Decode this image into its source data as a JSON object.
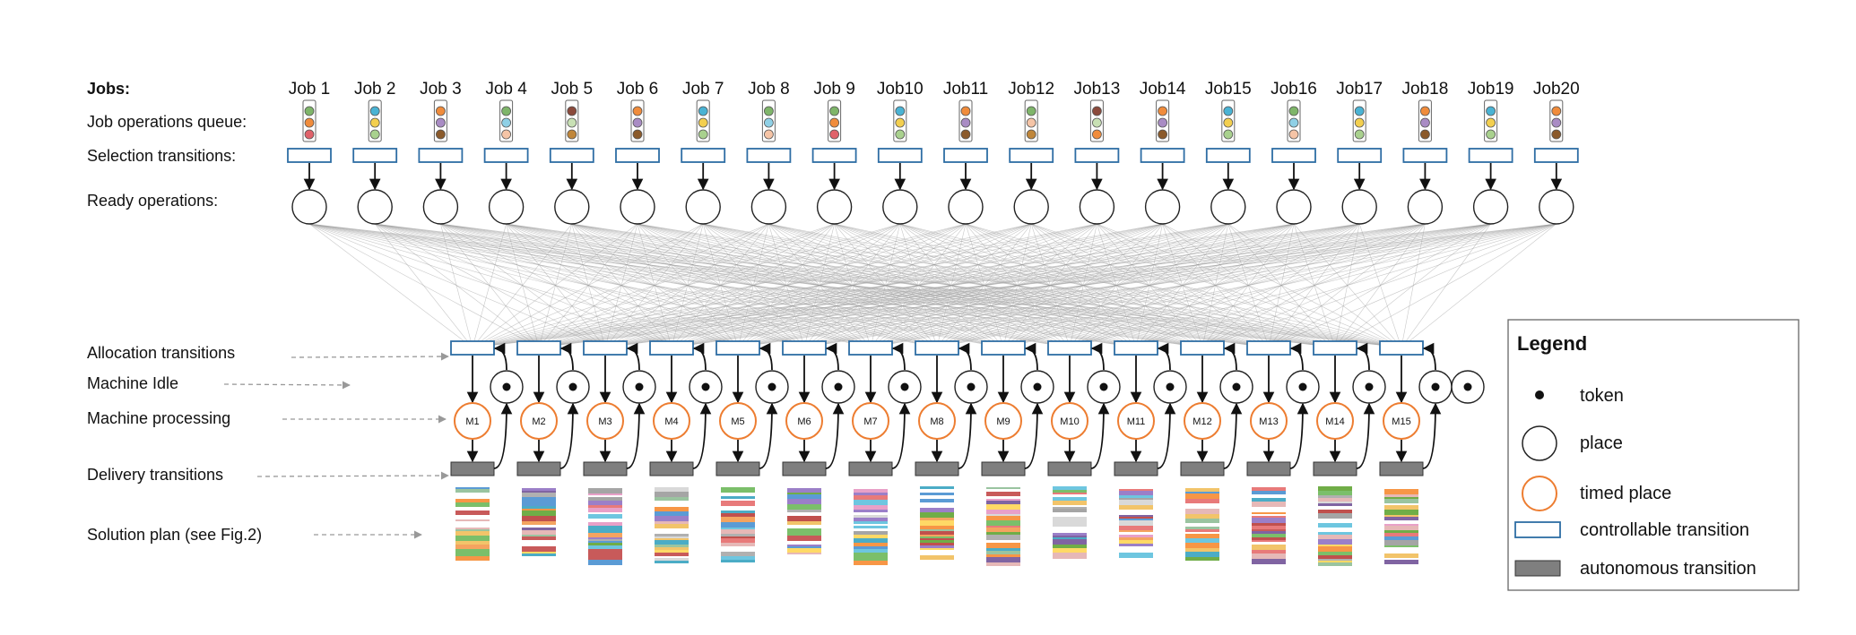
{
  "jobs_label": "Jobs:",
  "row_labels": {
    "queue": "Job operations queue:",
    "selection": "Selection transitions:",
    "ready": "Ready operations:",
    "allocation": "Allocation transitions",
    "idle": "Machine Idle",
    "processing": "Machine processing",
    "delivery": "Delivery transitions",
    "solution": "Solution plan (see Fig.2)"
  },
  "jobs": [
    "Job 1",
    "Job 2",
    "Job 3",
    "Job 4",
    "Job 5",
    "Job 6",
    "Job 7",
    "Job 8",
    "Job 9",
    "Job10",
    "Job11",
    "Job12",
    "Job13",
    "Job14",
    "Job15",
    "Job16",
    "Job17",
    "Job18",
    "Job19",
    "Job20"
  ],
  "job_token_colors": [
    [
      "#7fb56a",
      "#f08c3c",
      "#e0626a"
    ],
    [
      "#4ab3d4",
      "#f3cf4f",
      "#a9d18e"
    ],
    [
      "#f08c3c",
      "#a98cc4",
      "#8b5a2b"
    ],
    [
      "#7fb56a",
      "#8fd0e6",
      "#f5c4a6"
    ],
    [
      "#8b4a3c",
      "#c8e0b4",
      "#c0863a"
    ],
    [
      "#f08c3c",
      "#a98cc4",
      "#8b5a2b"
    ],
    [
      "#4ab3d4",
      "#f3cf4f",
      "#a9d18e"
    ],
    [
      "#7fb56a",
      "#8fd0e6",
      "#f5c4a6"
    ],
    [
      "#7fb56a",
      "#f08c3c",
      "#e0626a"
    ],
    [
      "#4ab3d4",
      "#f3cf4f",
      "#a9d18e"
    ],
    [
      "#f08c3c",
      "#a98cc4",
      "#8b5a2b"
    ],
    [
      "#7fb56a",
      "#f5c4a6",
      "#c0863a"
    ],
    [
      "#8b4a3c",
      "#c8e0b4",
      "#f08c3c"
    ],
    [
      "#f08c3c",
      "#a98cc4",
      "#8b5a2b"
    ],
    [
      "#4ab3d4",
      "#f3cf4f",
      "#a9d18e"
    ],
    [
      "#7fb56a",
      "#8fd0e6",
      "#f5c4a6"
    ],
    [
      "#4ab3d4",
      "#f3cf4f",
      "#a9d18e"
    ],
    [
      "#f08c3c",
      "#a98cc4",
      "#8b5a2b"
    ],
    [
      "#4ab3d4",
      "#f3cf4f",
      "#a9d18e"
    ],
    [
      "#f08c3c",
      "#a98cc4",
      "#8b5a2b"
    ]
  ],
  "machines": [
    "M1",
    "M2",
    "M3",
    "M4",
    "M5",
    "M6",
    "M7",
    "M8",
    "M9",
    "M10",
    "M11",
    "M12",
    "M13",
    "M14",
    "M15"
  ],
  "legend": {
    "title": "Legend",
    "items": [
      {
        "symbol": "token",
        "label": "token"
      },
      {
        "symbol": "place",
        "label": "place"
      },
      {
        "symbol": "timed-place",
        "label": "timed place"
      },
      {
        "symbol": "controllable-transition",
        "label": "controllable transition"
      },
      {
        "symbol": "autonomous-transition",
        "label": "autonomous transition"
      }
    ]
  },
  "colors": {
    "controllable_stroke": "#2e6da4",
    "autonomous_fill": "#7f7f7f",
    "timed_place_stroke": "#ed7d31",
    "connection_lines": "#9a9a9a"
  },
  "plan_palette": [
    "#e8a0c8",
    "#9b7fc8",
    "#6ec6e0",
    "#f2c46a",
    "#7bbf6a",
    "#e87a7a",
    "#b0b0b0",
    "#f4a460",
    "#5b9bd5",
    "#c85a5a",
    "#d9d9d9",
    "#9ac4a0",
    "#c0504d",
    "#8064a2",
    "#4bacc6",
    "#f79646",
    "#a5a5a5",
    "#ffd966",
    "#70ad47",
    "#e6b8b7"
  ]
}
